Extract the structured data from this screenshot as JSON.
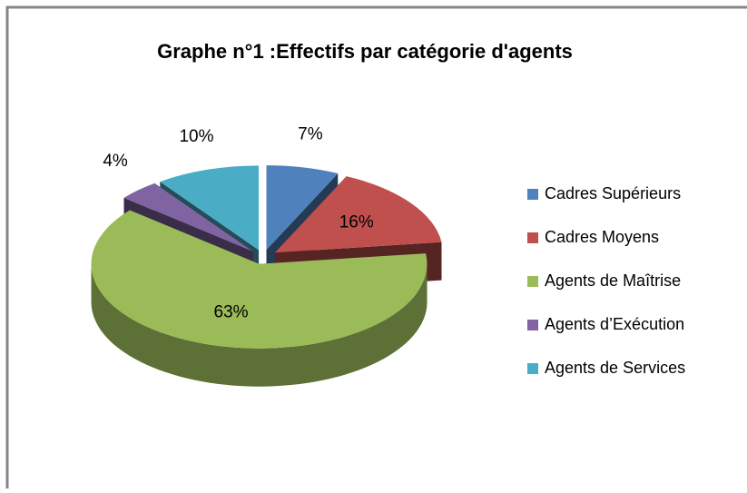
{
  "chart_data": {
    "type": "pie3d",
    "title": "Graphe n°1 :Effectifs par catégorie d'agents",
    "categories": [
      "Cadres Supérieurs",
      "Cadres Moyens",
      "Agents de Maîtrise",
      "Agents d’Exécution",
      "Agents de Services"
    ],
    "values": [
      7,
      16,
      63,
      4,
      10
    ],
    "value_labels": [
      "7%",
      "16%",
      "63%",
      "4%",
      "10%"
    ],
    "colors": [
      "#4f81bd",
      "#c0504d",
      "#9bbb59",
      "#8064a2",
      "#4bacc6"
    ],
    "legend": "right"
  }
}
